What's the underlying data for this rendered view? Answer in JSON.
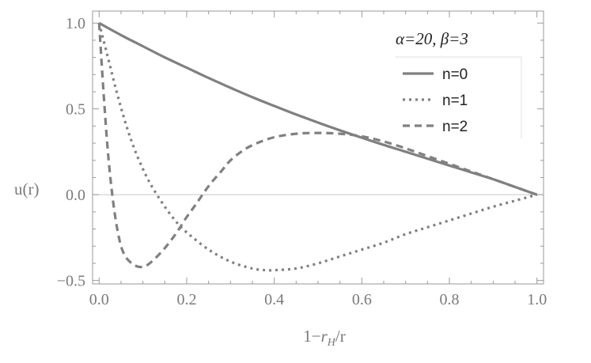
{
  "chart_data": {
    "type": "line",
    "title": "",
    "xlabel": "1−r_H/r",
    "xlabel_parts": {
      "pre": "1−",
      "var": "r",
      "sub": "H",
      "post": "/r"
    },
    "ylabel": "u(r)",
    "xlim": [
      -0.015,
      1.015
    ],
    "ylim": [
      -0.52,
      1.07
    ],
    "xticks": [
      "0.0",
      "0.2",
      "0.4",
      "0.6",
      "0.8",
      "1.0"
    ],
    "xtick_values": [
      0,
      0.2,
      0.4,
      0.6,
      0.8,
      1.0
    ],
    "yticks": [
      "−0.5",
      "0.0",
      "0.5",
      "1.0"
    ],
    "ytick_values": [
      -0.5,
      0,
      0.5,
      1.0
    ],
    "grid": false,
    "legend_title": "α=20, β=3",
    "legend_position": "top-right",
    "line_color": "#808080",
    "series": [
      {
        "name": "n=0",
        "style": "solid",
        "x": [
          0,
          0.05,
          0.1,
          0.15,
          0.2,
          0.25,
          0.3,
          0.35,
          0.4,
          0.45,
          0.5,
          0.55,
          0.6,
          0.65,
          0.7,
          0.75,
          0.8,
          0.85,
          0.9,
          0.95,
          1.0
        ],
        "y": [
          1.0,
          0.93,
          0.865,
          0.8,
          0.74,
          0.68,
          0.623,
          0.568,
          0.517,
          0.467,
          0.42,
          0.375,
          0.332,
          0.29,
          0.25,
          0.21,
          0.17,
          0.13,
          0.09,
          0.045,
          0
        ]
      },
      {
        "name": "n=1",
        "style": "dotted",
        "x": [
          0,
          0.02,
          0.04,
          0.06,
          0.08,
          0.1,
          0.12,
          0.15,
          0.18,
          0.2,
          0.25,
          0.3,
          0.35,
          0.38,
          0.4,
          0.45,
          0.5,
          0.55,
          0.6,
          0.65,
          0.7,
          0.75,
          0.8,
          0.85,
          0.9,
          0.95,
          1.0
        ],
        "y": [
          1.0,
          0.8,
          0.6,
          0.42,
          0.27,
          0.15,
          0.05,
          -0.07,
          -0.17,
          -0.22,
          -0.32,
          -0.39,
          -0.43,
          -0.44,
          -0.44,
          -0.43,
          -0.4,
          -0.36,
          -0.32,
          -0.28,
          -0.23,
          -0.19,
          -0.15,
          -0.11,
          -0.07,
          -0.035,
          0
        ]
      },
      {
        "name": "n=2",
        "style": "dashed",
        "x": [
          0,
          0.01,
          0.02,
          0.03,
          0.04,
          0.05,
          0.06,
          0.07,
          0.08,
          0.09,
          0.1,
          0.11,
          0.12,
          0.14,
          0.16,
          0.18,
          0.2,
          0.22,
          0.25,
          0.28,
          0.3,
          0.33,
          0.36,
          0.4,
          0.45,
          0.5,
          0.55,
          0.6,
          0.65,
          0.7,
          0.75,
          0.8,
          0.85,
          0.9,
          0.95,
          1.0
        ],
        "y": [
          1.0,
          0.6,
          0.25,
          0.0,
          -0.18,
          -0.3,
          -0.36,
          -0.39,
          -0.41,
          -0.42,
          -0.42,
          -0.41,
          -0.39,
          -0.34,
          -0.28,
          -0.21,
          -0.13,
          -0.06,
          0.05,
          0.14,
          0.2,
          0.26,
          0.3,
          0.335,
          0.355,
          0.36,
          0.355,
          0.34,
          0.31,
          0.27,
          0.225,
          0.18,
          0.135,
          0.09,
          0.045,
          0
        ]
      }
    ]
  }
}
